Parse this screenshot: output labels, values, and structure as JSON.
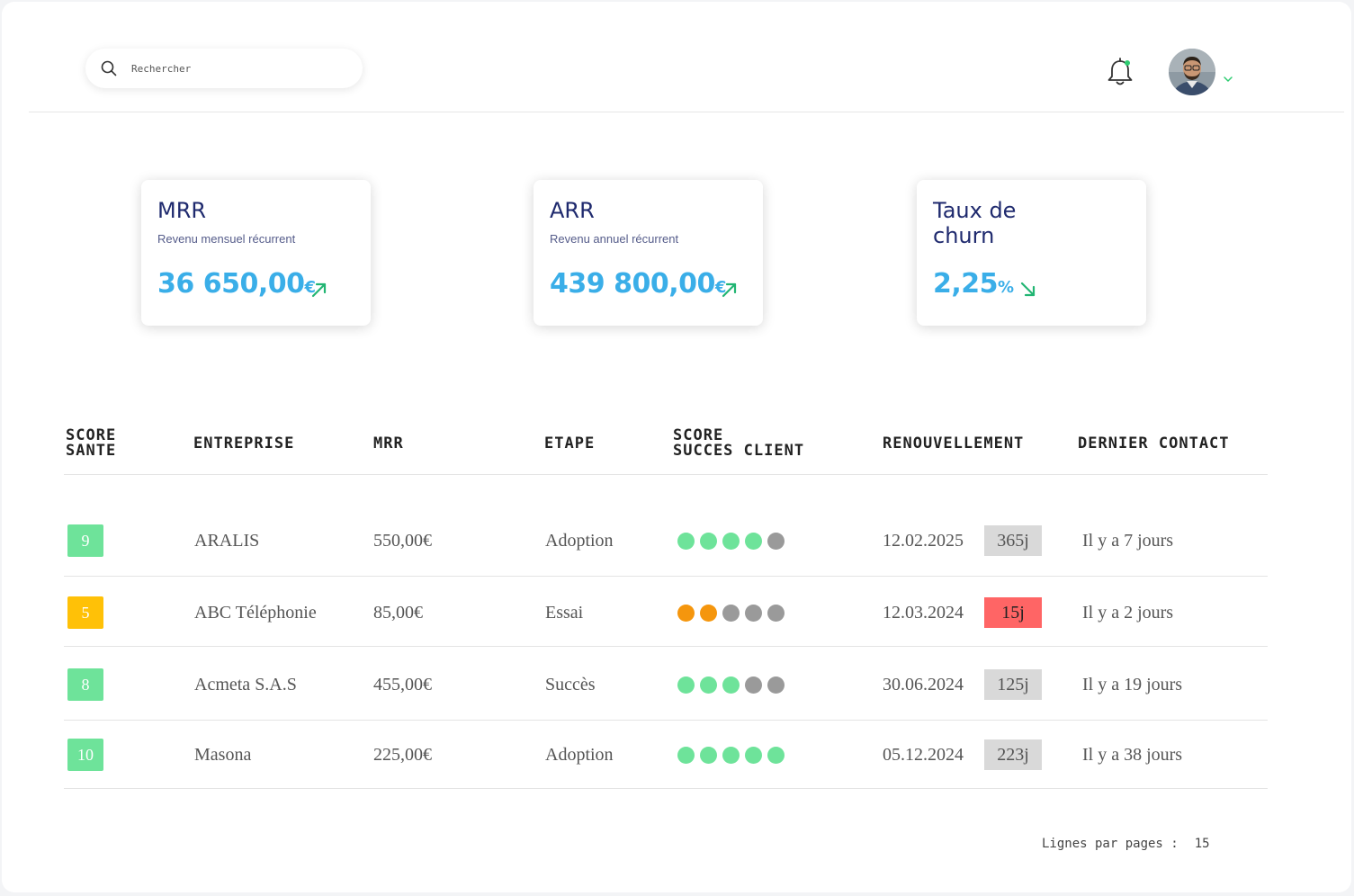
{
  "search": {
    "placeholder": "Rechercher"
  },
  "colors": {
    "accent_value": "#3aaee8",
    "title": "#1f2a6e",
    "green": "#6ee39a",
    "orange": "#f5960d",
    "yellow": "#ffc107",
    "grey": "#9a9a9a",
    "red": "#ff6565",
    "badge_grey": "#d9d9d9"
  },
  "header": {
    "notification_dot": true
  },
  "cards": [
    {
      "title": "MRR",
      "subtitle": "Revenu mensuel récurrent",
      "value": "36 650,00",
      "unit": "€",
      "trend": "up"
    },
    {
      "title": "ARR",
      "subtitle": "Revenu annuel récurrent",
      "value": "439 800,00",
      "unit": "€",
      "trend": "up"
    },
    {
      "title": "Taux de churn",
      "subtitle": "",
      "value": "2,25",
      "unit": "%",
      "trend": "down"
    }
  ],
  "table": {
    "headers": {
      "score_sante_1": "SCORE",
      "score_sante_2": "SANTE",
      "entreprise": "ENTREPRISE",
      "mrr": "MRR",
      "etape": "ETAPE",
      "score_succes_1": "SCORE",
      "score_succes_2": "SUCCES CLIENT",
      "renouvellement": "RENOUVELLEMENT",
      "dernier_contact": "DERNIER CONTACT"
    },
    "rows": [
      {
        "score": "9",
        "score_color": "green",
        "entreprise": "ARALIS",
        "mrr": "550,00€",
        "etape": "Adoption",
        "dots": [
          "green",
          "green",
          "green",
          "green",
          "grey"
        ],
        "renouvellement": "12.02.2025",
        "badge": "365j",
        "badge_color": "badge_grey",
        "dernier_contact": "Il y a 7 jours"
      },
      {
        "score": "5",
        "score_color": "yellow",
        "entreprise": "ABC Téléphonie",
        "mrr": "85,00€",
        "etape": "Essai",
        "dots": [
          "orange",
          "orange",
          "grey",
          "grey",
          "grey"
        ],
        "renouvellement": "12.03.2024",
        "badge": "15j",
        "badge_color": "red",
        "dernier_contact": "Il y a 2 jours"
      },
      {
        "score": "8",
        "score_color": "green",
        "entreprise": "Acmeta S.A.S",
        "mrr": "455,00€",
        "etape": "Succès",
        "dots": [
          "green",
          "green",
          "green",
          "grey",
          "grey"
        ],
        "renouvellement": "30.06.2024",
        "badge": "125j",
        "badge_color": "badge_grey",
        "dernier_contact": "Il y a 19 jours"
      },
      {
        "score": "10",
        "score_color": "green",
        "entreprise": "Masona",
        "mrr": "225,00€",
        "etape": "Adoption",
        "dots": [
          "green",
          "green",
          "green",
          "green",
          "green"
        ],
        "renouvellement": "05.12.2024",
        "badge": "223j",
        "badge_color": "badge_grey",
        "dernier_contact": "Il y a 38 jours"
      }
    ]
  },
  "pagination": {
    "label": "Lignes par pages :",
    "value": "15"
  }
}
